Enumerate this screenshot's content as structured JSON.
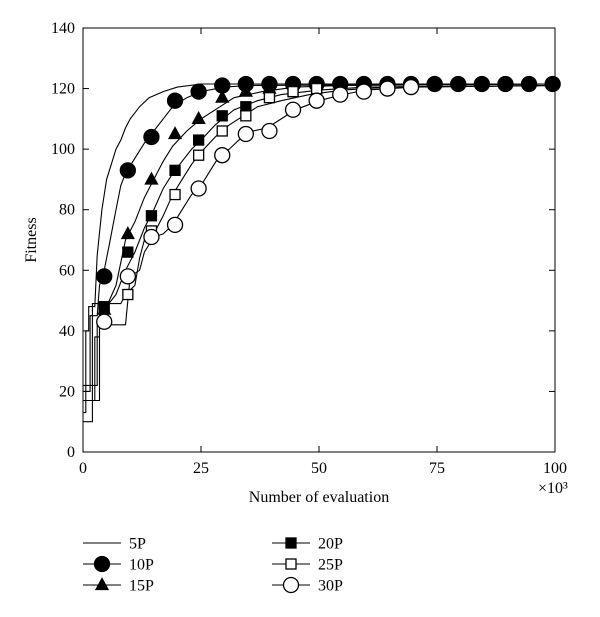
{
  "chart_data": {
    "type": "line",
    "title": "",
    "xlabel": "Number of evaluation",
    "ylabel": "Fitness",
    "x_multiplier_label": "×10³",
    "xlim": [
      0,
      100
    ],
    "ylim": [
      0,
      140
    ],
    "xticks": [
      0,
      25,
      50,
      75,
      100
    ],
    "yticks": [
      0,
      20,
      40,
      60,
      80,
      100,
      120,
      140
    ],
    "grid": false,
    "legend_position": "below plot, two columns",
    "line_color": "#000000",
    "series": [
      {
        "name": "5P",
        "marker": "none",
        "curve": [
          [
            0,
            13
          ],
          [
            0.6,
            13
          ],
          [
            0.6,
            40
          ],
          [
            1.2,
            40
          ],
          [
            1.2,
            48
          ],
          [
            2.5,
            48
          ],
          [
            3,
            65
          ],
          [
            4,
            80
          ],
          [
            5,
            90
          ],
          [
            6,
            95
          ],
          [
            7,
            100
          ],
          [
            8,
            103
          ],
          [
            9,
            107
          ],
          [
            10,
            110
          ],
          [
            12,
            114
          ],
          [
            14,
            117
          ],
          [
            17,
            119
          ],
          [
            20,
            120.5
          ],
          [
            25,
            121.5
          ],
          [
            100,
            121.5
          ]
        ],
        "markers": []
      },
      {
        "name": "10P",
        "marker": "filled-circle",
        "curve": [
          [
            0,
            20
          ],
          [
            1.5,
            20
          ],
          [
            1.5,
            45
          ],
          [
            3,
            45
          ],
          [
            3.5,
            55
          ],
          [
            4.5,
            60
          ],
          [
            5.5,
            68
          ],
          [
            7,
            80
          ],
          [
            8,
            88
          ],
          [
            9,
            92
          ],
          [
            11,
            97
          ],
          [
            13,
            102
          ],
          [
            15,
            106
          ],
          [
            17,
            110
          ],
          [
            19,
            114
          ],
          [
            22,
            117
          ],
          [
            25,
            119
          ],
          [
            30,
            120.5
          ],
          [
            35,
            121
          ],
          [
            100,
            121.5
          ]
        ],
        "markers": [
          [
            4.5,
            58
          ],
          [
            9.5,
            93
          ],
          [
            14.5,
            104
          ],
          [
            19.5,
            116
          ],
          [
            24.5,
            119
          ],
          [
            29.5,
            121
          ],
          [
            34.5,
            121.5
          ],
          [
            39.5,
            121.5
          ],
          [
            44.5,
            121.5
          ],
          [
            49.5,
            121.5
          ],
          [
            54.5,
            121.5
          ],
          [
            59.5,
            121.5
          ],
          [
            64.5,
            121.5
          ],
          [
            69.5,
            121.5
          ],
          [
            74.5,
            121.5
          ],
          [
            79.5,
            121.5
          ],
          [
            84.5,
            121.5
          ],
          [
            89.5,
            121.5
          ],
          [
            94.5,
            121.5
          ],
          [
            99.5,
            121.5
          ]
        ]
      },
      {
        "name": "15P",
        "marker": "filled-triangle",
        "curve": [
          [
            0,
            17
          ],
          [
            2.5,
            17
          ],
          [
            2.5,
            38
          ],
          [
            3.5,
            38
          ],
          [
            3.5,
            45
          ],
          [
            5,
            48
          ],
          [
            7,
            55
          ],
          [
            9,
            70
          ],
          [
            11,
            76
          ],
          [
            13,
            84
          ],
          [
            15,
            90
          ],
          [
            17,
            96
          ],
          [
            19,
            101
          ],
          [
            22,
            106
          ],
          [
            25,
            110
          ],
          [
            28,
            113
          ],
          [
            32,
            117
          ],
          [
            38,
            119
          ],
          [
            45,
            120.5
          ],
          [
            55,
            121
          ],
          [
            100,
            121.5
          ]
        ],
        "markers": [
          [
            4.5,
            47
          ],
          [
            9.5,
            72
          ],
          [
            14.5,
            90
          ],
          [
            19.5,
            105
          ],
          [
            24.5,
            110
          ],
          [
            29.5,
            117
          ],
          [
            34.5,
            119
          ],
          [
            39.5,
            120
          ]
        ]
      },
      {
        "name": "20P",
        "marker": "filled-square",
        "curve": [
          [
            0,
            17
          ],
          [
            3.5,
            17
          ],
          [
            3.5,
            48
          ],
          [
            5,
            48
          ],
          [
            7,
            52
          ],
          [
            9,
            60
          ],
          [
            11,
            66
          ],
          [
            13,
            74
          ],
          [
            15,
            80
          ],
          [
            17,
            87
          ],
          [
            19,
            92
          ],
          [
            21,
            96
          ],
          [
            23,
            100
          ],
          [
            25,
            103
          ],
          [
            28,
            108
          ],
          [
            32,
            113
          ],
          [
            37,
            116
          ],
          [
            42,
            118
          ],
          [
            50,
            119.5
          ],
          [
            60,
            120.5
          ],
          [
            100,
            121
          ]
        ],
        "markers": [
          [
            4.5,
            48
          ],
          [
            9.5,
            66
          ],
          [
            14.5,
            78
          ],
          [
            19.5,
            93
          ],
          [
            24.5,
            103
          ],
          [
            29.5,
            111
          ],
          [
            34.5,
            114
          ],
          [
            39.5,
            118
          ],
          [
            44.5,
            119
          ],
          [
            49.5,
            120
          ]
        ]
      },
      {
        "name": "25P",
        "marker": "open-square",
        "curve": [
          [
            0,
            10
          ],
          [
            2,
            10
          ],
          [
            2,
            49
          ],
          [
            8,
            49
          ],
          [
            9,
            52
          ],
          [
            11,
            55
          ],
          [
            12,
            64
          ],
          [
            13,
            70
          ],
          [
            15,
            72
          ],
          [
            17,
            78
          ],
          [
            19,
            85
          ],
          [
            21,
            90
          ],
          [
            23,
            95
          ],
          [
            25,
            99
          ],
          [
            28,
            104
          ],
          [
            31,
            108
          ],
          [
            34,
            111
          ],
          [
            37,
            114
          ],
          [
            42,
            116
          ],
          [
            48,
            118
          ],
          [
            55,
            119.5
          ],
          [
            65,
            120.5
          ],
          [
            100,
            121
          ]
        ],
        "markers": [
          [
            9.5,
            52
          ],
          [
            14.5,
            73
          ],
          [
            19.5,
            85
          ],
          [
            24.5,
            98
          ],
          [
            29.5,
            106
          ],
          [
            34.5,
            111
          ],
          [
            39.5,
            117
          ],
          [
            44.5,
            119
          ],
          [
            49.5,
            120
          ]
        ]
      },
      {
        "name": "30P",
        "marker": "open-circle",
        "curve": [
          [
            0,
            22
          ],
          [
            3,
            22
          ],
          [
            3,
            42
          ],
          [
            9,
            42
          ],
          [
            10,
            58
          ],
          [
            12,
            60
          ],
          [
            13,
            66
          ],
          [
            15,
            71
          ],
          [
            17,
            72
          ],
          [
            19,
            75
          ],
          [
            21,
            80
          ],
          [
            23,
            85
          ],
          [
            25,
            88
          ],
          [
            27,
            93
          ],
          [
            29,
            98
          ],
          [
            31,
            100
          ],
          [
            33,
            103
          ],
          [
            36,
            106
          ],
          [
            39,
            107
          ],
          [
            42,
            110
          ],
          [
            45,
            113
          ],
          [
            50,
            116
          ],
          [
            55,
            118
          ],
          [
            60,
            119.5
          ],
          [
            70,
            120.5
          ],
          [
            100,
            121
          ]
        ],
        "markers": [
          [
            4.5,
            43
          ],
          [
            9.5,
            58
          ],
          [
            14.5,
            71
          ],
          [
            19.5,
            75
          ],
          [
            24.5,
            87
          ],
          [
            29.5,
            98
          ],
          [
            34.5,
            105
          ],
          [
            39.5,
            106
          ],
          [
            44.5,
            113
          ],
          [
            49.5,
            116
          ],
          [
            54.5,
            118
          ],
          [
            59.5,
            119
          ],
          [
            64.5,
            120
          ],
          [
            69.5,
            120.5
          ]
        ]
      }
    ]
  }
}
